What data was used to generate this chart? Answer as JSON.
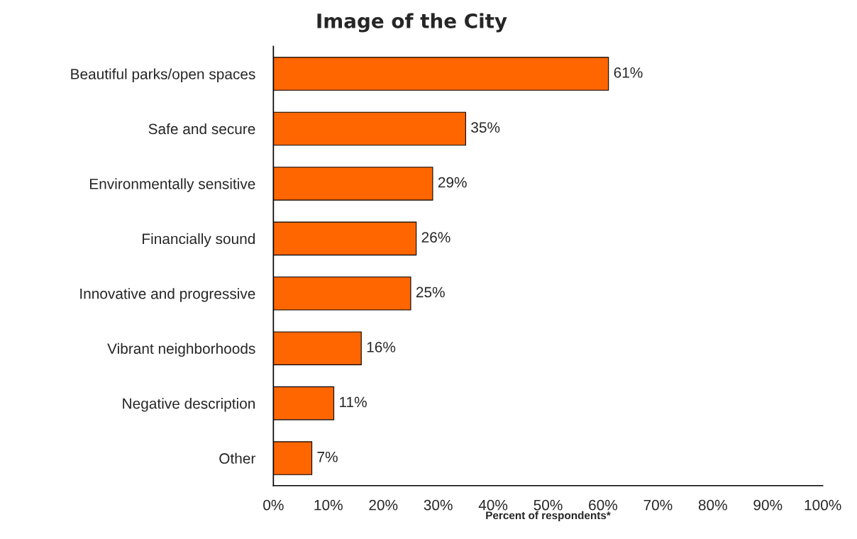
{
  "chart_data": {
    "type": "bar",
    "orientation": "horizontal",
    "title": "Image of the City",
    "xlabel": "Percent of respondents*",
    "categories": [
      "Beautiful parks/open spaces",
      "Safe and secure",
      "Environmentally sensitive",
      "Financially sound",
      "Innovative and progressive",
      "Vibrant neighborhoods",
      "Negative description",
      "Other"
    ],
    "values": [
      61,
      35,
      29,
      26,
      25,
      16,
      11,
      7
    ],
    "value_labels": [
      "61%",
      "35%",
      "29%",
      "26%",
      "25%",
      "16%",
      "11%",
      "7%"
    ],
    "color": "#ff6600",
    "xlim": [
      0,
      100
    ],
    "xticks": [
      {
        "value": 0,
        "label": "0%"
      },
      {
        "value": 10,
        "label": "10%"
      },
      {
        "value": 20,
        "label": "20%"
      },
      {
        "value": 30,
        "label": "30%"
      },
      {
        "value": 40,
        "label": "40%"
      },
      {
        "value": 50,
        "label": "50%"
      },
      {
        "value": 60,
        "label": "60%"
      },
      {
        "value": 70,
        "label": "70%"
      },
      {
        "value": 80,
        "label": "80%"
      },
      {
        "value": 90,
        "label": "90%"
      },
      {
        "value": 100,
        "label": "100%"
      }
    ],
    "grid": false,
    "legend": false
  }
}
